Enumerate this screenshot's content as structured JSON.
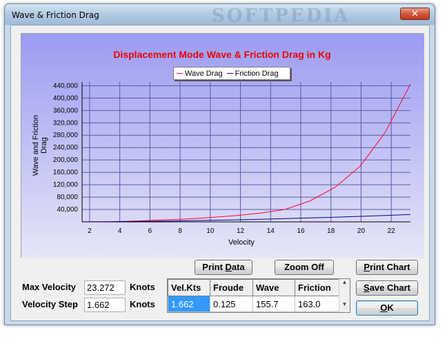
{
  "window": {
    "title": "Wave & Friction Drag",
    "watermark": "SOFTPEDIA",
    "close_glyph": "✕"
  },
  "chart_data": {
    "type": "line",
    "title": "Displacement Mode Wave & Friction Drag in Kg",
    "xlabel": "Velocity",
    "ylabel": "Wave and Friction Drag",
    "xlim": [
      1.5,
      23.272
    ],
    "ylim": [
      0,
      452000
    ],
    "x_ticks": [
      2,
      4,
      6,
      8,
      10,
      12,
      14,
      16,
      18,
      20,
      22
    ],
    "y_ticks": [
      40000,
      80000,
      120000,
      160000,
      200000,
      240000,
      280000,
      320000,
      360000,
      400000,
      440000
    ],
    "y_tick_labels": [
      "40,000",
      "80,000",
      "120,000",
      "160,000",
      "200,000",
      "240,000",
      "280,000",
      "320,000",
      "360,000",
      "400,000",
      "440,000"
    ],
    "grid": true,
    "legend_position": "top-center",
    "x": [
      1.662,
      3.324,
      4.986,
      6.648,
      8.31,
      9.972,
      11.634,
      13.296,
      14.958,
      16.62,
      18.282,
      19.944,
      21.606,
      23.272
    ],
    "series": [
      {
        "name": "Wave Drag",
        "color": "#ff0033",
        "values": [
          156,
          620,
          2500,
          6000,
          9000,
          14000,
          20000,
          28000,
          40000,
          68000,
          112000,
          180000,
          290000,
          445000
        ]
      },
      {
        "name": "Friction Drag",
        "color": "#000099",
        "values": [
          163,
          620,
          1350,
          2300,
          3500,
          4900,
          6500,
          8400,
          10500,
          12800,
          15200,
          17900,
          20800,
          23800
        ]
      }
    ]
  },
  "buttons": {
    "print_data_pre": "Print ",
    "print_data_u": "D",
    "print_data_post": "ata",
    "zoom_off": "Zoom Off",
    "print_chart_pre": "",
    "print_chart_u": "P",
    "print_chart_post": "rint Chart",
    "save_chart_pre": "",
    "save_chart_u": "S",
    "save_chart_post": "ave Chart",
    "ok_u": "O",
    "ok_post": "K"
  },
  "inputs": {
    "max_velocity_label": "Max Velocity",
    "max_velocity_value": "23.272",
    "max_velocity_unit": "Knots",
    "velocity_step_label": "Velocity Step",
    "velocity_step_value": "1.662",
    "velocity_step_unit": "Knots"
  },
  "table": {
    "headers": [
      "Vel.Kts",
      "Froude",
      "Wave",
      "Friction"
    ],
    "rows": [
      [
        "1.662",
        "0.125",
        "155.7",
        "163.0"
      ]
    ],
    "scroll_up": "▲",
    "scroll_down": "▼"
  }
}
